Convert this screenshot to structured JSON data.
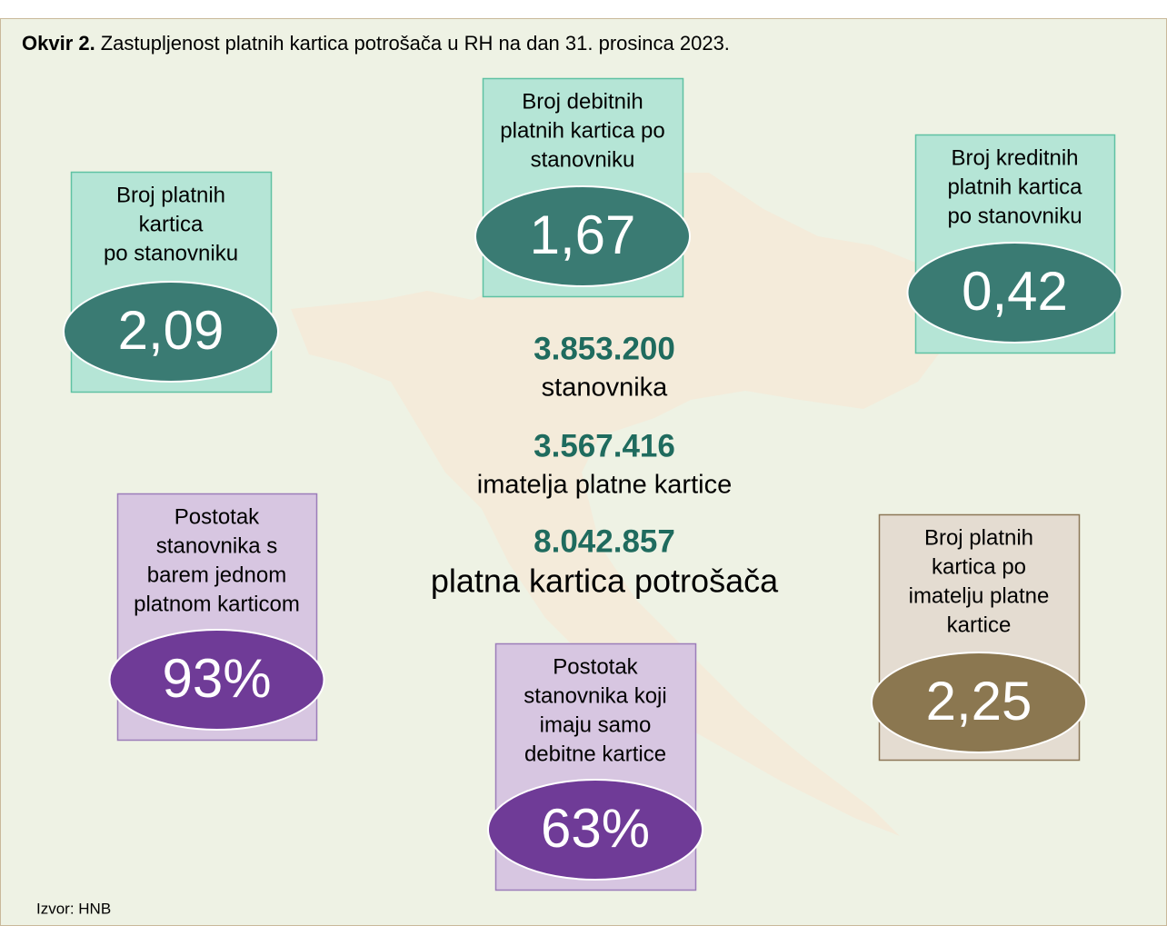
{
  "header": {
    "label": "Okvir 2.",
    "title": "Zastupljenost platnih kartica potrošača u RH na dan 31. prosinca 2023."
  },
  "boxes": [
    {
      "label": [
        "Broj platnih",
        "kartica",
        "po stanovniku"
      ],
      "value": "2,09",
      "theme": "teal"
    },
    {
      "label": [
        "Broj debitnih",
        "platnih kartica po",
        "stanovniku"
      ],
      "value": "1,67",
      "theme": "teal"
    },
    {
      "label": [
        "Broj kreditnih",
        "platnih kartica",
        "po stanovniku"
      ],
      "value": "0,42",
      "theme": "teal"
    },
    {
      "label": [
        "Postotak",
        "stanovnika s",
        "barem jednom",
        "platnom karticom"
      ],
      "value": "93%",
      "theme": "purple"
    },
    {
      "label": [
        "Postotak",
        "stanovnika koji",
        "imaju samo",
        "debitne kartice"
      ],
      "value": "63%",
      "theme": "purple"
    },
    {
      "label": [
        "Broj platnih",
        "kartica po",
        "imatelju platne",
        "kartice"
      ],
      "value": "2,25",
      "theme": "tan"
    }
  ],
  "stats": [
    {
      "value": "3.853.200",
      "label": "stanovnika"
    },
    {
      "value": "3.567.416",
      "label": "imatelja platne kartice"
    },
    {
      "value": "8.042.857",
      "label": "platna kartica potrošača"
    }
  ],
  "source": "Izvor: HNB"
}
